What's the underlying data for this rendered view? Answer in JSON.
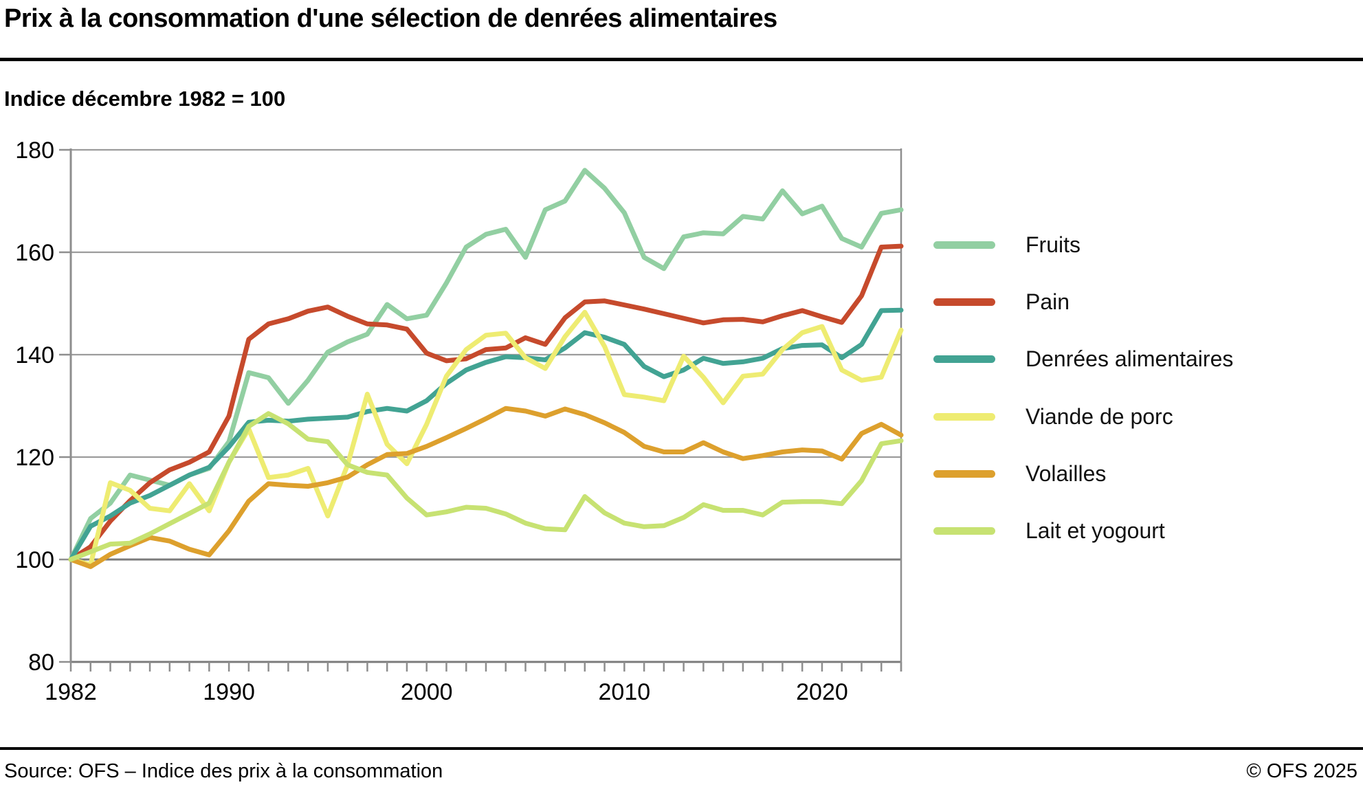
{
  "title": "Prix à la consommation d'une sélection de denrées alimentaires",
  "subtitle": "Indice décembre 1982 = 100",
  "footer": {
    "source": "Source: OFS – Indice des prix à la consommation",
    "copyright": "© OFS 2025"
  },
  "colors": {
    "fruits": "#92cfa2",
    "pain": "#c64a2c",
    "denrees": "#42a393",
    "porc": "#eeec72",
    "volailles": "#dda02d",
    "lait": "#c7e272",
    "grid": "#9c9c9c",
    "grid_strong": "#7b7b7b",
    "axis": "#8e8e8e",
    "tick_label": "#000000"
  },
  "legend": {
    "items": [
      {
        "label": "Fruits",
        "color": "#92cfa2"
      },
      {
        "label": "Pain",
        "color": "#c64a2c"
      },
      {
        "label": "Denrées alimentaires",
        "color": "#42a393"
      },
      {
        "label": "Viande de porc",
        "color": "#eeec72"
      },
      {
        "label": "Volailles",
        "color": "#dda02d"
      },
      {
        "label": "Lait et yogourt",
        "color": "#c7e272"
      }
    ]
  },
  "chart_data": {
    "type": "line",
    "title": "Prix à la consommation d'une sélection de denrées alimentaires",
    "xlabel": "",
    "ylabel": "Indice décembre 1982 = 100",
    "x_start": 1982,
    "x_end": 2024,
    "xticks": [
      1982,
      1990,
      2000,
      2010,
      2020
    ],
    "yticks": [
      80,
      100,
      120,
      140,
      160,
      180
    ],
    "ylim": [
      80,
      180
    ],
    "baseline": 100,
    "grid": true,
    "legend_position": "right",
    "series": [
      {
        "name": "Fruits",
        "color": "#92cfa2",
        "values": [
          100,
          108,
          111,
          116.5,
          115.5,
          114.5,
          116.5,
          117.8,
          123,
          136.5,
          135.5,
          130.5,
          135,
          140.5,
          142.5,
          144,
          149.8,
          147,
          147.7,
          154,
          161,
          163.5,
          164.5,
          159,
          168.3,
          170,
          176,
          172.5,
          167.7,
          159,
          156.8,
          163,
          163.8,
          163.6,
          167,
          166.5,
          172,
          167.5,
          169,
          162.7,
          161,
          167.6,
          168.3
        ]
      },
      {
        "name": "Pain",
        "color": "#c64a2c",
        "values": [
          100,
          102.5,
          107.5,
          111.5,
          115,
          117.5,
          119,
          121,
          128,
          143,
          146,
          147,
          148.5,
          149.3,
          147.5,
          146,
          145.8,
          145,
          140.3,
          138.8,
          139.2,
          141,
          141.3,
          143.3,
          142,
          147.2,
          150.3,
          150.5,
          149.7,
          148.9,
          148,
          147.1,
          146.2,
          146.8,
          146.9,
          146.4,
          147.6,
          148.6,
          147.4,
          146.3,
          151.5,
          161,
          161.2
        ]
      },
      {
        "name": "Denrées alimentaires",
        "color": "#42a393",
        "values": [
          100,
          106.5,
          108.5,
          111,
          112.5,
          114.5,
          116.5,
          118,
          122,
          126.8,
          127.2,
          127,
          127.4,
          127.6,
          127.8,
          128.9,
          129.5,
          129,
          131,
          134.4,
          137,
          138.5,
          139.6,
          139.4,
          139,
          141.3,
          144.3,
          143.4,
          142,
          137.7,
          135.7,
          137,
          139.3,
          138.3,
          138.6,
          139.3,
          141.2,
          141.8,
          141.9,
          139.4,
          142,
          148.6,
          148.7
        ]
      },
      {
        "name": "Viande de porc",
        "color": "#eeec72",
        "values": [
          100,
          99,
          115,
          113.5,
          110,
          109.5,
          114.8,
          109.5,
          119,
          125.5,
          116,
          116.5,
          117.8,
          108.5,
          118.5,
          132.3,
          122.5,
          118.7,
          126.4,
          135.8,
          141,
          143.8,
          144.2,
          139.4,
          137.3,
          143.5,
          148.3,
          141.6,
          132.2,
          131.7,
          131,
          139.7,
          135.6,
          130.6,
          135.8,
          136.2,
          141,
          144.3,
          145.5,
          137,
          135,
          135.6,
          144.8
        ]
      },
      {
        "name": "Volailles",
        "color": "#dda02d",
        "values": [
          100,
          98.6,
          101,
          102.7,
          104.3,
          103.6,
          102,
          100.9,
          105.6,
          111.4,
          114.8,
          114.5,
          114.3,
          115,
          116.1,
          118.5,
          120.5,
          120.7,
          122.1,
          123.8,
          125.6,
          127.5,
          129.5,
          129,
          128,
          129.4,
          128.3,
          126.7,
          124.8,
          122.1,
          121,
          121,
          122.8,
          121,
          119.7,
          120.3,
          121,
          121.4,
          121.2,
          119.6,
          124.6,
          126.4,
          124.3
        ]
      },
      {
        "name": "Lait et yogourt",
        "color": "#c7e272",
        "values": [
          100,
          101.5,
          103,
          103.2,
          105,
          107,
          109,
          111,
          119,
          126,
          128.5,
          126.5,
          123.5,
          123,
          118.5,
          117,
          116.5,
          112,
          108.7,
          109.3,
          110.2,
          110,
          108.9,
          107.1,
          106,
          105.8,
          112.3,
          109.1,
          107.1,
          106.4,
          106.6,
          108.2,
          110.7,
          109.6,
          109.6,
          108.7,
          111.2,
          111.3,
          111.3,
          110.9,
          115.4,
          122.6,
          123.2
        ]
      }
    ]
  }
}
